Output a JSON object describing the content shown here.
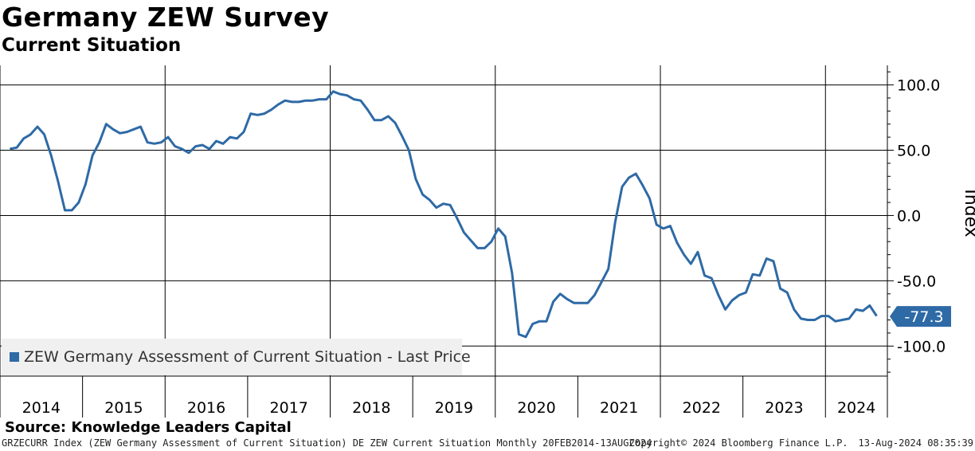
{
  "title": "Germany ZEW Survey",
  "subtitle": "Current Situation",
  "source": "Source: Knowledge Leaders Capital",
  "footer": {
    "series_info": "GRZECURR Index (ZEW Germany Assessment of Current Situation) DE ZEW Current Situation  Monthly 20FEB2014-13AUG2024",
    "copyright": "Copyright© 2024 Bloomberg Finance L.P.",
    "timestamp": "13-Aug-2024 08:35:39"
  },
  "colors": {
    "series": "#2e6aa6",
    "grid": "#000000"
  },
  "chart_data": {
    "type": "line",
    "ylabel": "Index",
    "ylim": [
      -123,
      115
    ],
    "y_ticks": [
      100,
      50,
      0,
      -50,
      -100
    ],
    "y_tick_labels": [
      "100.0",
      "50.0",
      "0.0",
      "-50.0",
      "-100.0"
    ],
    "x_year_labels": [
      "2014",
      "2015",
      "2016",
      "2017",
      "2018",
      "2019",
      "2020",
      "2021",
      "2022",
      "2023",
      "2024"
    ],
    "x_start": 2014.12,
    "x_step": 0.08333,
    "legend": "ZEW Germany Assessment of Current Situation - Last Price",
    "last_value_label": "-77.3",
    "last_value": -77.3,
    "series": [
      {
        "name": "ZEW Germany Assessment of Current Situation",
        "values": [
          51,
          52,
          59,
          62,
          68,
          62,
          46,
          26,
          4,
          4,
          10,
          24,
          46,
          56,
          70,
          66,
          63,
          64,
          66,
          68,
          56,
          55,
          56,
          60,
          53,
          51,
          48,
          53,
          54,
          51,
          57,
          55,
          60,
          59,
          64,
          78,
          77,
          78,
          81,
          85,
          88,
          87,
          87,
          88,
          88,
          89,
          89,
          95,
          93,
          92,
          89,
          88,
          81,
          73,
          73,
          76,
          71,
          61,
          50,
          28,
          16,
          12,
          6,
          9,
          8,
          -2,
          -13,
          -19,
          -25,
          -25,
          -20,
          -10,
          -16,
          -44,
          -91,
          -93,
          -83,
          -81,
          -81,
          -66,
          -60,
          -64,
          -67,
          -67,
          -67,
          -61,
          -51,
          -41,
          -5,
          22,
          29,
          32,
          23,
          13,
          -7,
          -10,
          -8,
          -21,
          -30,
          -37,
          -28,
          -46,
          -48,
          -61,
          -72,
          -65,
          -61,
          -59,
          -45,
          -46,
          -33,
          -35,
          -56,
          -59,
          -72,
          -79,
          -80,
          -80,
          -77,
          -77,
          -81,
          -80,
          -79,
          -72,
          -73,
          -69,
          -77
        ]
      }
    ]
  }
}
